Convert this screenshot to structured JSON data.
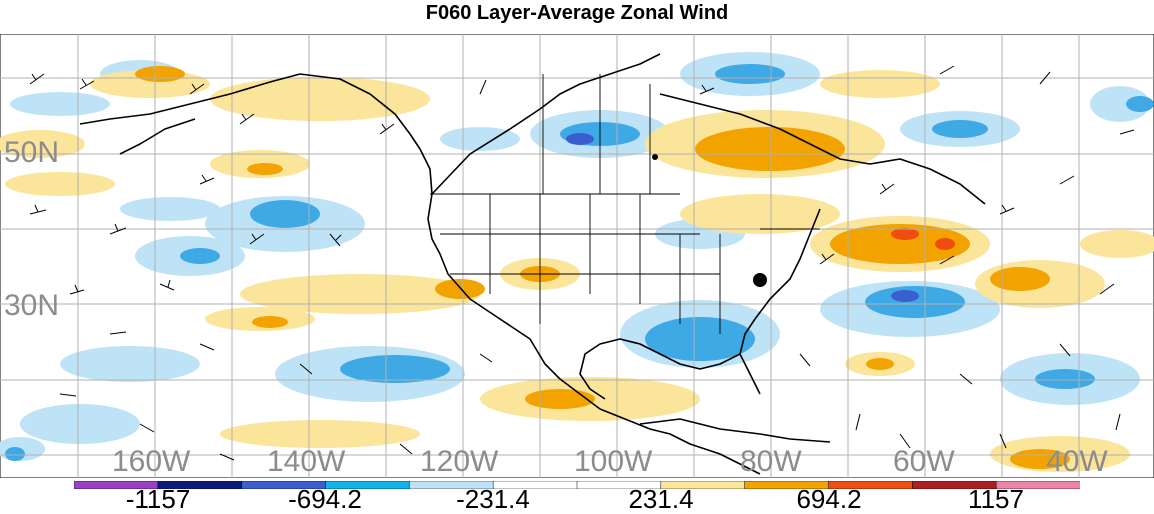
{
  "title": "F060 Layer-Average Zonal Wind",
  "lat_labels": [
    "50N",
    "30N"
  ],
  "lon_labels": [
    "160W",
    "140W",
    "120W",
    "100W",
    "80W",
    "60W",
    "40W"
  ],
  "colorbar": {
    "labels": [
      "-1157",
      "-694.2",
      "-231.4",
      "231.4",
      "694.2",
      "1157"
    ],
    "colors": [
      "#9b3fc4",
      "#0a1a7a",
      "#3a5ecf",
      "#12b3e8",
      "#bfe3f6",
      "#ffffff",
      "#ffffff",
      "#fbe59a",
      "#f2a300",
      "#ef4d12",
      "#b01f1f",
      "#ee83a8"
    ]
  },
  "palette": {
    "light_blue": "#bfe3f6",
    "blue": "#3fa9e6",
    "dark_blue": "#3a5ecf",
    "yellow": "#fbe59a",
    "orange": "#f2a300",
    "red_orange": "#ef4d12",
    "grid": "#b0b0b0",
    "coast": "#000000"
  }
}
